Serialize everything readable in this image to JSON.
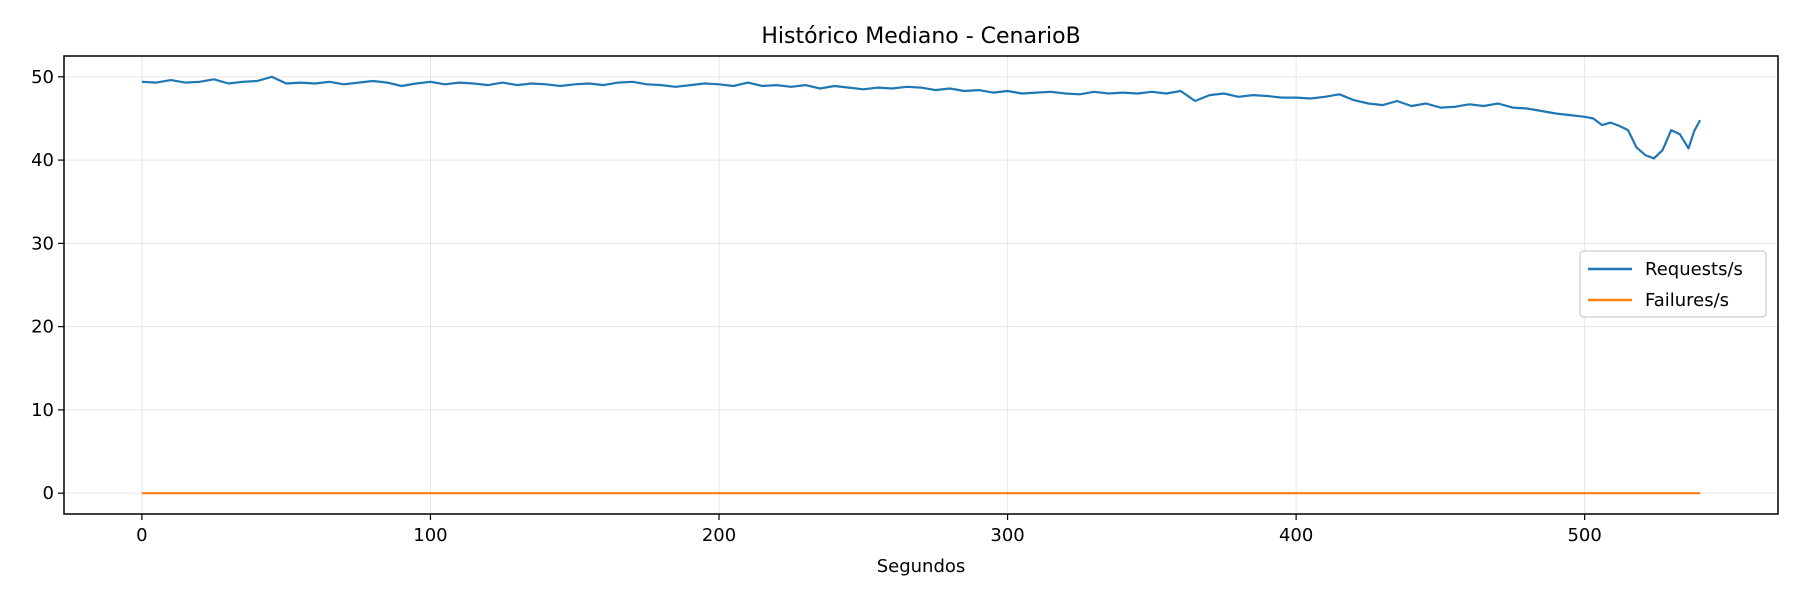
{
  "chart_data": {
    "type": "line",
    "title": "Histórico Mediano - CenarioB",
    "xlabel": "Segundos",
    "ylabel": "",
    "xlim": [
      -27,
      567
    ],
    "ylim": [
      -2.5,
      52.5
    ],
    "xticks": [
      0,
      100,
      200,
      300,
      400,
      500
    ],
    "yticks": [
      0,
      10,
      20,
      30,
      40,
      50
    ],
    "grid": true,
    "legend_position": "center-right",
    "series": [
      {
        "name": "Requests/s",
        "color": "#1f77b4",
        "x": [
          0,
          5,
          10,
          15,
          20,
          25,
          30,
          35,
          40,
          45,
          50,
          55,
          60,
          65,
          70,
          75,
          80,
          85,
          90,
          95,
          100,
          105,
          110,
          115,
          120,
          125,
          130,
          135,
          140,
          145,
          150,
          155,
          160,
          165,
          170,
          175,
          180,
          185,
          190,
          195,
          200,
          205,
          210,
          215,
          220,
          225,
          230,
          235,
          240,
          245,
          250,
          255,
          260,
          265,
          270,
          275,
          280,
          285,
          290,
          295,
          300,
          305,
          310,
          315,
          320,
          325,
          330,
          335,
          340,
          345,
          350,
          355,
          360,
          365,
          370,
          375,
          380,
          385,
          390,
          395,
          400,
          405,
          410,
          415,
          420,
          425,
          430,
          435,
          440,
          445,
          450,
          455,
          460,
          465,
          470,
          475,
          480,
          485,
          490,
          495,
          500,
          503,
          506,
          509,
          512,
          515,
          518,
          521,
          524,
          527,
          530,
          533,
          536,
          538,
          540
        ],
        "values": [
          49.4,
          49.3,
          49.6,
          49.3,
          49.4,
          49.7,
          49.2,
          49.4,
          49.5,
          50.0,
          49.2,
          49.3,
          49.2,
          49.4,
          49.1,
          49.3,
          49.5,
          49.3,
          48.9,
          49.2,
          49.4,
          49.1,
          49.3,
          49.2,
          49.0,
          49.3,
          49.0,
          49.2,
          49.1,
          48.9,
          49.1,
          49.2,
          49.0,
          49.3,
          49.4,
          49.1,
          49.0,
          48.8,
          49.0,
          49.2,
          49.1,
          48.9,
          49.3,
          48.9,
          49.0,
          48.8,
          49.0,
          48.6,
          48.9,
          48.7,
          48.5,
          48.7,
          48.6,
          48.8,
          48.7,
          48.4,
          48.6,
          48.3,
          48.4,
          48.1,
          48.3,
          48.0,
          48.1,
          48.2,
          48.0,
          47.9,
          48.2,
          48.0,
          48.1,
          48.0,
          48.2,
          48.0,
          48.3,
          47.1,
          47.8,
          48.0,
          47.6,
          47.8,
          47.7,
          47.5,
          47.5,
          47.4,
          47.6,
          47.9,
          47.2,
          46.8,
          46.6,
          47.1,
          46.5,
          46.8,
          46.3,
          46.4,
          46.7,
          46.5,
          46.8,
          46.3,
          46.2,
          45.9,
          45.6,
          45.4,
          45.2,
          45.0,
          44.2,
          44.5,
          44.1,
          43.6,
          41.5,
          40.6,
          40.2,
          41.2,
          43.6,
          43.1,
          41.4,
          43.5,
          44.8
        ]
      },
      {
        "name": "Failures/s",
        "color": "#ff7f0e",
        "x": [
          0,
          540
        ],
        "values": [
          0,
          0
        ]
      }
    ]
  }
}
